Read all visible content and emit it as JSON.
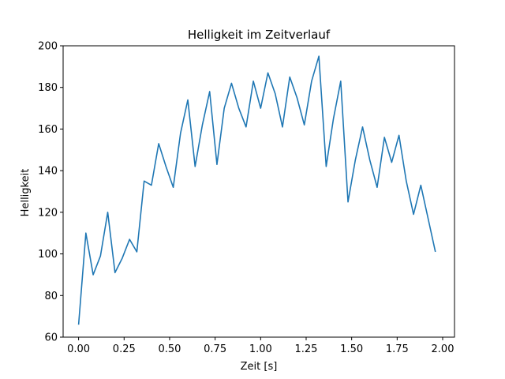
{
  "chart_data": {
    "type": "line",
    "title": "Helligkeit im Zeitverlauf",
    "xlabel": "Zeit [s]",
    "ylabel": "Helligkeit",
    "xlim": [
      -0.085,
      2.065
    ],
    "ylim": [
      60,
      200
    ],
    "xticks": [
      0.0,
      0.25,
      0.5,
      0.75,
      1.0,
      1.25,
      1.5,
      1.75,
      2.0
    ],
    "xtick_labels": [
      "0.00",
      "0.25",
      "0.50",
      "0.75",
      "1.00",
      "1.25",
      "1.50",
      "1.75",
      "2.00"
    ],
    "yticks": [
      60,
      80,
      100,
      120,
      140,
      160,
      180,
      200
    ],
    "ytick_labels": [
      "60",
      "80",
      "100",
      "120",
      "140",
      "160",
      "180",
      "200"
    ],
    "grid": false,
    "color": "#1f77b4",
    "series": [
      {
        "x": [
          0.0,
          0.04,
          0.08,
          0.12,
          0.16,
          0.2,
          0.24,
          0.28,
          0.32,
          0.36,
          0.4,
          0.44,
          0.48,
          0.52,
          0.56,
          0.6,
          0.64,
          0.68,
          0.72,
          0.76,
          0.8,
          0.84,
          0.88,
          0.92,
          0.96,
          1.0,
          1.04,
          1.08,
          1.12,
          1.16,
          1.2,
          1.24,
          1.28,
          1.32,
          1.36,
          1.4,
          1.44,
          1.48,
          1.52,
          1.56,
          1.6,
          1.64,
          1.68,
          1.72,
          1.76,
          1.8,
          1.84,
          1.88,
          1.92,
          1.96
        ],
        "y": [
          66,
          110,
          90,
          99,
          120,
          91,
          98,
          107,
          101,
          135,
          133,
          153,
          142,
          132,
          158,
          174,
          142,
          162,
          178,
          143,
          170,
          182,
          170,
          161,
          183,
          170,
          187,
          177,
          161,
          185,
          175,
          162,
          183,
          195,
          142,
          165,
          183,
          125,
          145,
          161,
          145,
          132,
          156,
          144,
          157,
          135,
          119,
          133,
          117,
          101
        ]
      }
    ]
  }
}
